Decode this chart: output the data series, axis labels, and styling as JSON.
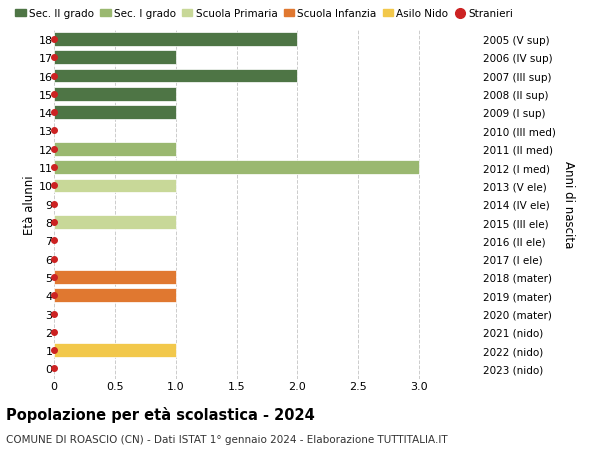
{
  "ages": [
    0,
    1,
    2,
    3,
    4,
    5,
    6,
    7,
    8,
    9,
    10,
    11,
    12,
    13,
    14,
    15,
    16,
    17,
    18
  ],
  "values": [
    0,
    1,
    0,
    0,
    1,
    1,
    0,
    0,
    1,
    0,
    1,
    3,
    1,
    0,
    1,
    1,
    2,
    1,
    2
  ],
  "right_labels": [
    "2023 (nido)",
    "2022 (nido)",
    "2021 (nido)",
    "2020 (mater)",
    "2019 (mater)",
    "2018 (mater)",
    "2017 (I ele)",
    "2016 (II ele)",
    "2015 (III ele)",
    "2014 (IV ele)",
    "2013 (V ele)",
    "2012 (I med)",
    "2011 (II med)",
    "2010 (III med)",
    "2009 (I sup)",
    "2008 (II sup)",
    "2007 (III sup)",
    "2006 (IV sup)",
    "2005 (V sup)"
  ],
  "bar_colors": [
    "#f2c84b",
    "#f2c84b",
    "#f2c84b",
    "#e07830",
    "#e07830",
    "#e07830",
    "#c8d898",
    "#c8d898",
    "#c8d898",
    "#c8d898",
    "#c8d898",
    "#9ab870",
    "#9ab870",
    "#9ab870",
    "#4e7545",
    "#4e7545",
    "#4e7545",
    "#4e7545",
    "#4e7545"
  ],
  "stranieri_color": "#cc2222",
  "stranieri_ages": [
    0,
    1,
    2,
    3,
    4,
    5,
    6,
    7,
    8,
    9,
    10,
    11,
    12,
    13,
    14,
    15,
    16,
    17,
    18
  ],
  "legend_labels": [
    "Sec. II grado",
    "Sec. I grado",
    "Scuola Primaria",
    "Scuola Infanzia",
    "Asilo Nido",
    "Stranieri"
  ],
  "legend_colors": [
    "#4e7545",
    "#9ab870",
    "#c8d898",
    "#e07830",
    "#f2c84b",
    "#cc2222"
  ],
  "title": "Popolazione per età scolastica - 2024",
  "subtitle": "COMUNE DI ROASCIO (CN) - Dati ISTAT 1° gennaio 2024 - Elaborazione TUTTITALIA.IT",
  "ylabel_left": "Età alunni",
  "ylabel_right": "Anni di nascita",
  "xlim": [
    0,
    3.5
  ],
  "xticks": [
    0,
    0.5,
    1.0,
    1.5,
    2.0,
    2.5,
    3.0
  ],
  "bar_height": 0.75,
  "bg_color": "#ffffff",
  "grid_color": "#cccccc"
}
